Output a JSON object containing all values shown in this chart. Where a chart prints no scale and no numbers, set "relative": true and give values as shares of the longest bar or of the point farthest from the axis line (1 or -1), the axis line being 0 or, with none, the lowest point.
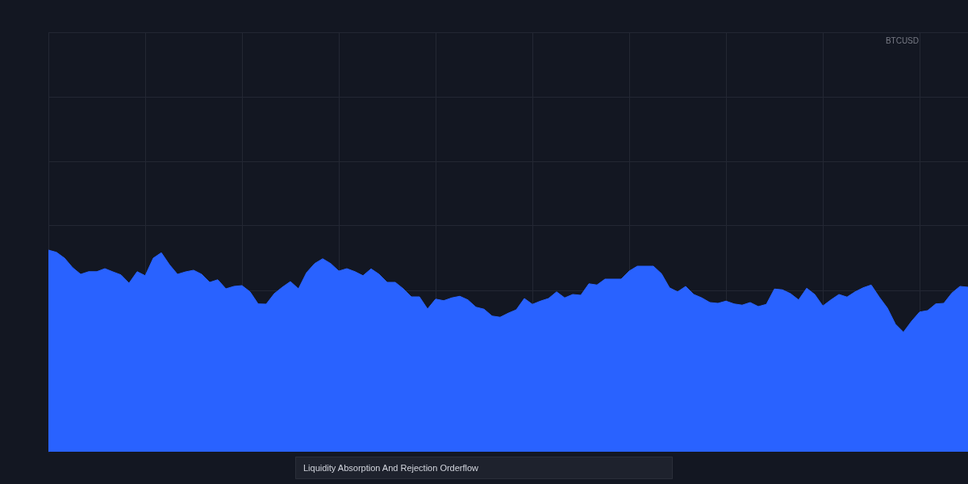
{
  "chart_data": {
    "type": "area",
    "title": "Liquidity Absorption And Rejection Orderflow",
    "annotations": [
      "BTCUSD"
    ],
    "relative": true,
    "grid": true,
    "color": "#2962ff",
    "categories": [
      null,
      null,
      null,
      null,
      null,
      null,
      null,
      null,
      null,
      null,
      null,
      null,
      null,
      null,
      null,
      null,
      null,
      null,
      null,
      null,
      null,
      null,
      null,
      null,
      null,
      null,
      null,
      null,
      null,
      null,
      null,
      null,
      null,
      null,
      null,
      null,
      null,
      null,
      null,
      null,
      null,
      null,
      null,
      null,
      null,
      null,
      null,
      null,
      null,
      null,
      null,
      null,
      null,
      null,
      null,
      null,
      null,
      null,
      null,
      null,
      null,
      null,
      null,
      null,
      null,
      null,
      null,
      null,
      null,
      null,
      null,
      null,
      null,
      null,
      null,
      null,
      null,
      null,
      null,
      null,
      null,
      null,
      null,
      null,
      null,
      null,
      null,
      null,
      null,
      null,
      null,
      null,
      null,
      null,
      null,
      null,
      null,
      null,
      null,
      null,
      null,
      null,
      null,
      null,
      null,
      null,
      null,
      null,
      null,
      null,
      null,
      null,
      null,
      null,
      null
    ],
    "values": [
      1.0,
      0.989,
      0.96,
      0.913,
      0.88,
      0.893,
      0.893,
      0.908,
      0.892,
      0.877,
      0.836,
      0.893,
      0.873,
      0.96,
      0.987,
      0.928,
      0.88,
      0.892,
      0.9,
      0.88,
      0.84,
      0.853,
      0.808,
      0.82,
      0.824,
      0.793,
      0.733,
      0.732,
      0.784,
      0.816,
      0.844,
      0.808,
      0.888,
      0.933,
      0.957,
      0.933,
      0.896,
      0.908,
      0.893,
      0.873,
      0.907,
      0.88,
      0.84,
      0.84,
      0.808,
      0.768,
      0.768,
      0.708,
      0.757,
      0.749,
      0.763,
      0.771,
      0.753,
      0.717,
      0.707,
      0.673,
      0.667,
      0.687,
      0.704,
      0.76,
      0.731,
      0.747,
      0.76,
      0.793,
      0.763,
      0.78,
      0.776,
      0.833,
      0.827,
      0.856,
      0.856,
      0.856,
      0.896,
      0.92,
      0.92,
      0.92,
      0.883,
      0.813,
      0.793,
      0.82,
      0.78,
      0.763,
      0.74,
      0.736,
      0.747,
      0.733,
      0.727,
      0.74,
      0.72,
      0.731,
      0.807,
      0.803,
      0.784,
      0.753,
      0.811,
      0.78,
      0.723,
      0.753,
      0.78,
      0.767,
      0.793,
      0.813,
      0.827,
      0.767,
      0.713,
      0.633,
      0.593,
      0.647,
      0.693,
      0.7,
      0.733,
      0.736,
      0.787,
      0.82,
      0.816
    ]
  }
}
